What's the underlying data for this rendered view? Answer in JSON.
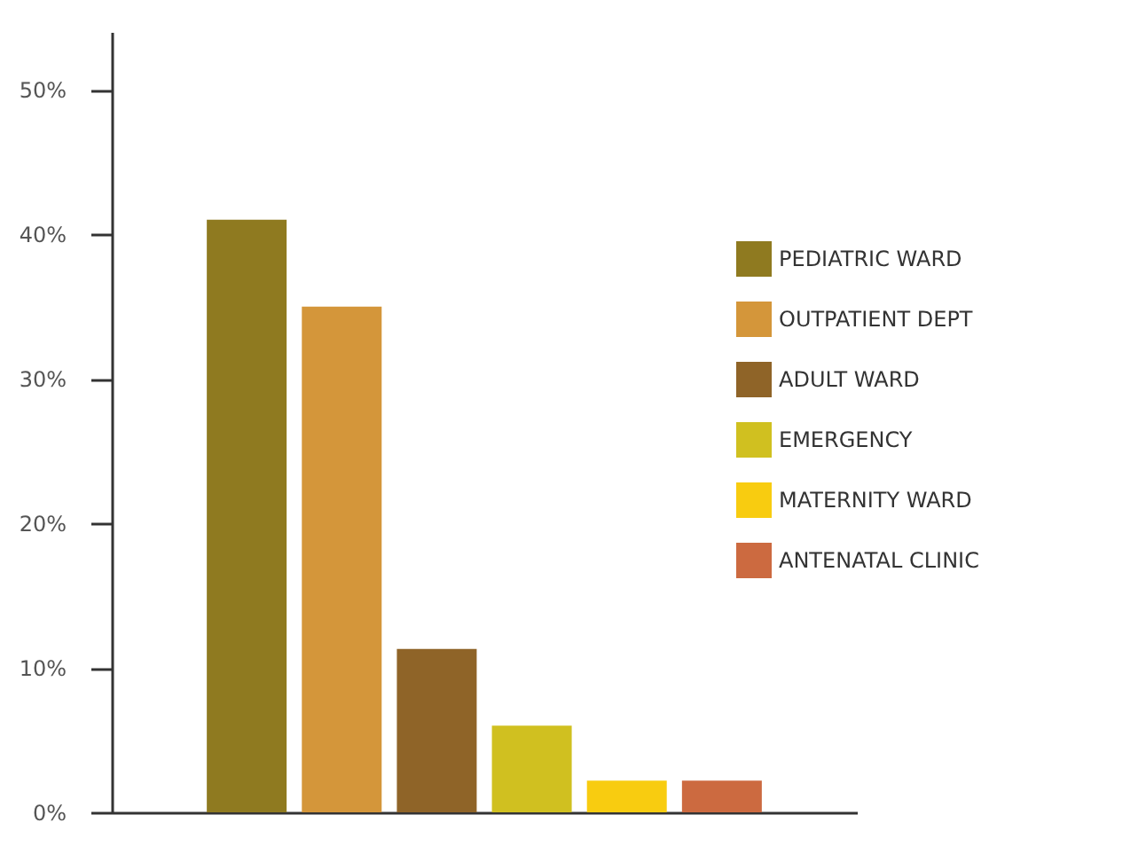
{
  "chart_data": {
    "type": "bar",
    "categories": [
      null
    ],
    "series": [
      {
        "name": "PEDIATRIC WARD",
        "color": "#8f7a20",
        "values": [
          41
        ]
      },
      {
        "name": "OUTPATIENT DEPT",
        "color": "#d4963a",
        "values": [
          35
        ]
      },
      {
        "name": "ADULT WARD",
        "color": "#8f6428",
        "values": [
          11.3
        ]
      },
      {
        "name": "EMERGENCY",
        "color": "#d0c020",
        "values": [
          6
        ]
      },
      {
        "name": "MATERNITY WARD",
        "color": "#f8cc10",
        "values": [
          2.2
        ]
      },
      {
        "name": "ANTENATAL CLINIC",
        "color": "#cc6a40",
        "values": [
          2.2
        ]
      }
    ],
    "ylim": [
      0,
      54
    ],
    "yticks": [
      {
        "value": 0,
        "label": "0%"
      },
      {
        "value": 10,
        "label": "10%"
      },
      {
        "value": 20,
        "label": "20%"
      },
      {
        "value": 30,
        "label": "30%"
      },
      {
        "value": 40,
        "label": "40%"
      },
      {
        "value": 50,
        "label": "50%"
      }
    ],
    "grid": false,
    "legend": "right",
    "tick_labels": "y"
  }
}
